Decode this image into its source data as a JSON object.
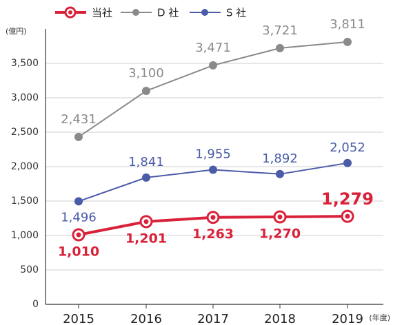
{
  "chart_data": {
    "type": "line",
    "y_label": "(億円)",
    "x_label": "(年度)",
    "categories": [
      "2015",
      "2016",
      "2017",
      "2018",
      "2019"
    ],
    "series": [
      {
        "name": "当社",
        "color": "#d9213a",
        "values": [
          1010,
          1201,
          1263,
          1270,
          1279
        ],
        "value_labels": [
          "1,010",
          "1,201",
          "1,263",
          "1,270",
          "1,279"
        ]
      },
      {
        "name": "D 社",
        "color": "#8a8a8a",
        "values": [
          2431,
          3100,
          3471,
          3721,
          3811
        ],
        "value_labels": [
          "2,431",
          "3,100",
          "3,471",
          "3,721",
          "3,811"
        ]
      },
      {
        "name": "S 社",
        "color": "#4a5ba8",
        "values": [
          1496,
          1841,
          1955,
          1892,
          2052
        ],
        "value_labels": [
          "1,496",
          "1,841",
          "1,955",
          "1,892",
          "2,052"
        ]
      }
    ],
    "ylim": [
      0,
      4000
    ],
    "yticks": [
      0,
      500,
      {
        "value": 1000,
        "label": "1,000"
      },
      {
        "value": 1500,
        "label": "1,500"
      },
      {
        "value": 2000,
        "label": "2,000"
      },
      {
        "value": 2500,
        "label": "2,500"
      },
      {
        "value": 3000,
        "label": "3,000"
      },
      {
        "value": 3500,
        "label": "3,500"
      }
    ],
    "grid": true
  }
}
